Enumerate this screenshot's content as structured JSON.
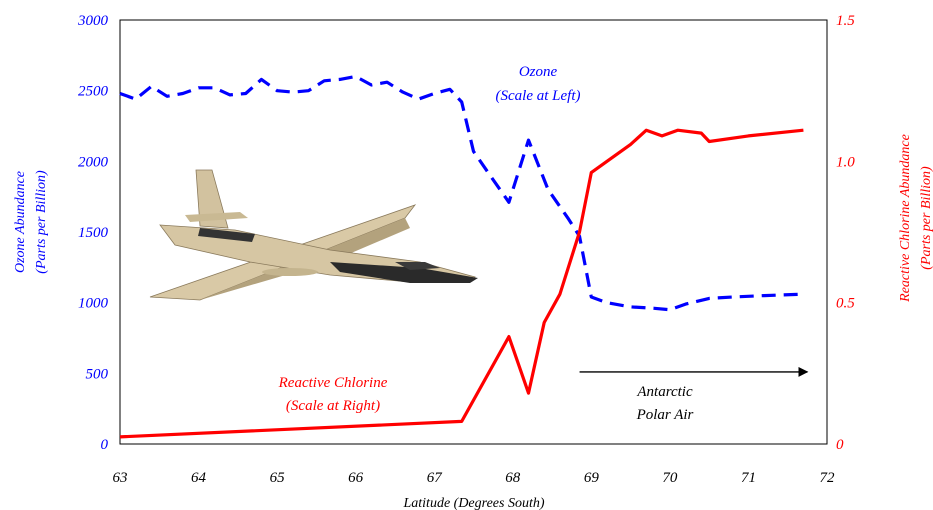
{
  "chart_data": {
    "type": "line",
    "xlabel": "Latitude (Degrees South)",
    "xlim": [
      63,
      72
    ],
    "x_ticks": [
      "63",
      "64",
      "65",
      "66",
      "67",
      "68",
      "69",
      "70",
      "71",
      "72"
    ],
    "y_left": {
      "label_line1": "Ozone Abundance",
      "label_line2": "(Parts per Billion)",
      "lim": [
        0,
        3000
      ],
      "ticks": [
        "0",
        "500",
        "1000",
        "1500",
        "2000",
        "2500",
        "3000"
      ],
      "color": "#0000ff"
    },
    "y_right": {
      "label_line1": "Reactive Chlorine Abundance",
      "label_line2": "(Parts per Billion)",
      "lim": [
        0,
        1.5
      ],
      "ticks": [
        "0",
        "0.5",
        "1.0",
        "1.5"
      ],
      "color": "#ff0000"
    },
    "series": [
      {
        "name": "Ozone",
        "axis": "left",
        "color": "#0000ff",
        "style": "dashed",
        "x": [
          63.0,
          63.2,
          63.4,
          63.6,
          63.8,
          64.0,
          64.2,
          64.4,
          64.6,
          64.8,
          65.0,
          65.2,
          65.4,
          65.6,
          65.8,
          66.0,
          66.2,
          66.4,
          66.6,
          66.8,
          67.0,
          67.2,
          67.35,
          67.5,
          67.7,
          67.95,
          68.2,
          68.45,
          68.7,
          68.85,
          69.0,
          69.2,
          69.5,
          69.8,
          70.0,
          70.2,
          70.5,
          70.8,
          71.2,
          71.7
        ],
        "y": [
          2480,
          2440,
          2530,
          2460,
          2480,
          2520,
          2520,
          2470,
          2480,
          2580,
          2500,
          2490,
          2500,
          2570,
          2580,
          2600,
          2540,
          2560,
          2490,
          2440,
          2480,
          2510,
          2420,
          2070,
          1910,
          1710,
          2150,
          1800,
          1600,
          1470,
          1040,
          1000,
          970,
          960,
          950,
          990,
          1030,
          1040,
          1050,
          1060
        ]
      },
      {
        "name": "Reactive Chlorine",
        "axis": "right",
        "color": "#ff0000",
        "style": "solid",
        "x": [
          63.0,
          67.35,
          67.95,
          68.2,
          68.4,
          68.6,
          68.85,
          69.0,
          69.2,
          69.5,
          69.7,
          69.9,
          70.1,
          70.4,
          70.5,
          71.0,
          71.7
        ],
        "y": [
          0.025,
          0.08,
          0.38,
          0.18,
          0.43,
          0.53,
          0.75,
          0.96,
          1.0,
          1.06,
          1.11,
          1.09,
          1.11,
          1.1,
          1.07,
          1.09,
          1.11
        ]
      }
    ],
    "annotations": {
      "ozone_line1": "Ozone",
      "ozone_line2": "(Scale at Left)",
      "chlorine_line1": "Reactive Chlorine",
      "chlorine_line2": "(Scale at Right)",
      "polar_line1": "Antarctic",
      "polar_line2": "Polar Air"
    },
    "arrow": {
      "from_x": 68.85,
      "to_x": 71.75,
      "y_left": 510
    },
    "grid": false,
    "legend": "none"
  },
  "image": {
    "icon": "aircraft-photo"
  }
}
